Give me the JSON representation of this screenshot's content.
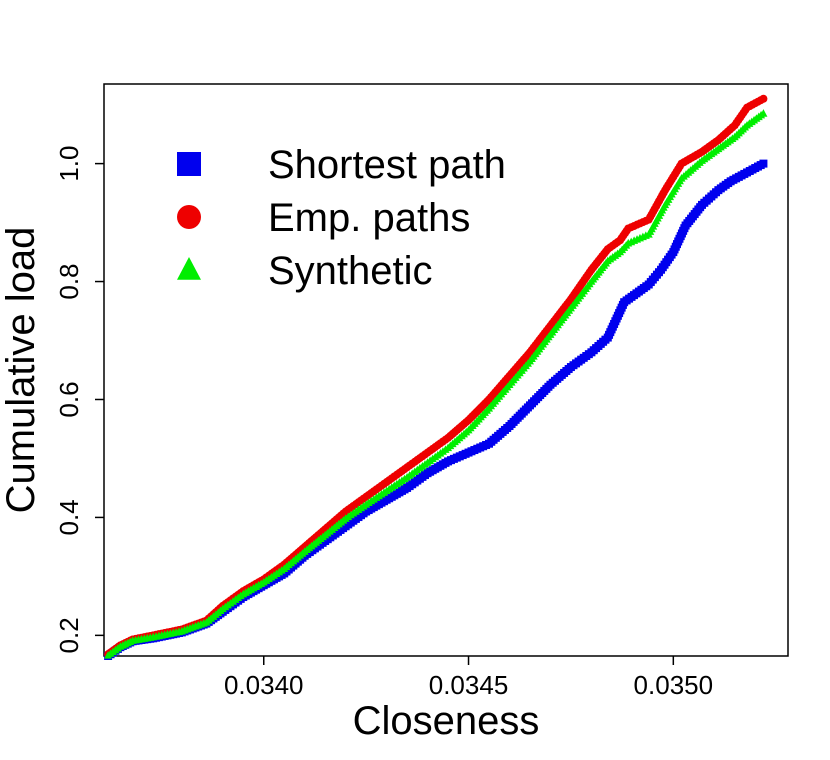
{
  "chart_data": {
    "type": "scatter",
    "title": "",
    "xlabel": "Closeness",
    "ylabel": "Cumulative load",
    "xlim": [
      0.03361,
      0.03528
    ],
    "ylim": [
      0.165,
      1.135
    ],
    "xticks": [
      0.034,
      0.0345,
      0.035
    ],
    "xtick_labels": [
      "0.0340",
      "0.0345",
      "0.0350"
    ],
    "yticks": [
      0.2,
      0.4,
      0.6,
      0.8,
      1.0
    ],
    "ytick_labels": [
      "0.2",
      "0.4",
      "0.6",
      "0.8",
      "1.0"
    ],
    "grid": false,
    "legend_position": "top-left",
    "series": [
      {
        "name": "Shortest path",
        "color": "#0000ee",
        "marker": "square",
        "points": [
          [
            0.03362,
            0.165
          ],
          [
            0.03365,
            0.18
          ],
          [
            0.03368,
            0.19
          ],
          [
            0.03373,
            0.195
          ],
          [
            0.0338,
            0.205
          ],
          [
            0.03386,
            0.22
          ],
          [
            0.0339,
            0.24
          ],
          [
            0.03395,
            0.265
          ],
          [
            0.034,
            0.285
          ],
          [
            0.03405,
            0.305
          ],
          [
            0.0341,
            0.335
          ],
          [
            0.03415,
            0.36
          ],
          [
            0.0342,
            0.385
          ],
          [
            0.03425,
            0.41
          ],
          [
            0.0343,
            0.43
          ],
          [
            0.03435,
            0.45
          ],
          [
            0.0344,
            0.475
          ],
          [
            0.03445,
            0.495
          ],
          [
            0.0345,
            0.51
          ],
          [
            0.03455,
            0.525
          ],
          [
            0.0346,
            0.555
          ],
          [
            0.03465,
            0.59
          ],
          [
            0.0347,
            0.625
          ],
          [
            0.03475,
            0.655
          ],
          [
            0.0348,
            0.68
          ],
          [
            0.03484,
            0.705
          ],
          [
            0.03488,
            0.765
          ],
          [
            0.03494,
            0.795
          ],
          [
            0.03497,
            0.82
          ],
          [
            0.035,
            0.85
          ],
          [
            0.03503,
            0.895
          ],
          [
            0.03507,
            0.93
          ],
          [
            0.03511,
            0.955
          ],
          [
            0.03514,
            0.97
          ],
          [
            0.03518,
            0.985
          ],
          [
            0.03522,
            1.0
          ]
        ]
      },
      {
        "name": "Emp. paths",
        "color": "#ee0000",
        "marker": "circle",
        "points": [
          [
            0.03362,
            0.168
          ],
          [
            0.03365,
            0.183
          ],
          [
            0.03368,
            0.193
          ],
          [
            0.03373,
            0.2
          ],
          [
            0.0338,
            0.21
          ],
          [
            0.03386,
            0.225
          ],
          [
            0.0339,
            0.25
          ],
          [
            0.03395,
            0.275
          ],
          [
            0.034,
            0.295
          ],
          [
            0.03405,
            0.32
          ],
          [
            0.0341,
            0.35
          ],
          [
            0.03415,
            0.38
          ],
          [
            0.0342,
            0.41
          ],
          [
            0.03425,
            0.435
          ],
          [
            0.0343,
            0.46
          ],
          [
            0.03435,
            0.485
          ],
          [
            0.0344,
            0.51
          ],
          [
            0.03445,
            0.535
          ],
          [
            0.0345,
            0.565
          ],
          [
            0.03455,
            0.6
          ],
          [
            0.0346,
            0.64
          ],
          [
            0.03465,
            0.68
          ],
          [
            0.0347,
            0.725
          ],
          [
            0.03475,
            0.77
          ],
          [
            0.0348,
            0.82
          ],
          [
            0.03484,
            0.855
          ],
          [
            0.03487,
            0.87
          ],
          [
            0.03489,
            0.89
          ],
          [
            0.03494,
            0.905
          ],
          [
            0.03498,
            0.955
          ],
          [
            0.03502,
            1.0
          ],
          [
            0.03507,
            1.02
          ],
          [
            0.03511,
            1.04
          ],
          [
            0.03515,
            1.065
          ],
          [
            0.03518,
            1.095
          ],
          [
            0.03522,
            1.11
          ]
        ]
      },
      {
        "name": "Synthetic",
        "color": "#00ee00",
        "marker": "triangle",
        "points": [
          [
            0.03362,
            0.166
          ],
          [
            0.03365,
            0.181
          ],
          [
            0.03368,
            0.191
          ],
          [
            0.03373,
            0.197
          ],
          [
            0.0338,
            0.207
          ],
          [
            0.03386,
            0.222
          ],
          [
            0.0339,
            0.245
          ],
          [
            0.03395,
            0.27
          ],
          [
            0.034,
            0.29
          ],
          [
            0.03405,
            0.313
          ],
          [
            0.0341,
            0.342
          ],
          [
            0.03415,
            0.37
          ],
          [
            0.0342,
            0.398
          ],
          [
            0.03425,
            0.422
          ],
          [
            0.0343,
            0.445
          ],
          [
            0.03435,
            0.468
          ],
          [
            0.0344,
            0.493
          ],
          [
            0.03445,
            0.518
          ],
          [
            0.0345,
            0.548
          ],
          [
            0.03455,
            0.585
          ],
          [
            0.0346,
            0.625
          ],
          [
            0.03465,
            0.665
          ],
          [
            0.0347,
            0.71
          ],
          [
            0.03475,
            0.755
          ],
          [
            0.0348,
            0.8
          ],
          [
            0.03484,
            0.835
          ],
          [
            0.03487,
            0.85
          ],
          [
            0.03489,
            0.865
          ],
          [
            0.03494,
            0.88
          ],
          [
            0.03498,
            0.93
          ],
          [
            0.03502,
            0.975
          ],
          [
            0.03507,
            1.005
          ],
          [
            0.03511,
            1.025
          ],
          [
            0.03515,
            1.045
          ],
          [
            0.03518,
            1.065
          ],
          [
            0.03522,
            1.085
          ]
        ]
      }
    ]
  }
}
